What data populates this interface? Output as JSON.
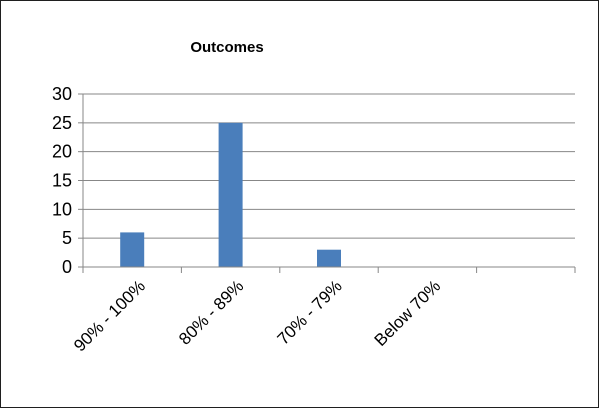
{
  "chart_data": {
    "type": "bar",
    "title": "Outcomes",
    "categories": [
      "90% - 100%",
      "80% - 89%",
      "70% - 79%",
      "Below 70%",
      ""
    ],
    "values": [
      6,
      25,
      3,
      0,
      0
    ],
    "xlabel": "",
    "ylabel": "",
    "ylim": [
      0,
      30
    ],
    "yticks": [
      0,
      5,
      10,
      15,
      20,
      25,
      30
    ],
    "grid": "horizontal",
    "legend": "none",
    "colors": {
      "bar": "#4a7ebb",
      "gridline": "#878787",
      "axis": "#878787"
    }
  }
}
